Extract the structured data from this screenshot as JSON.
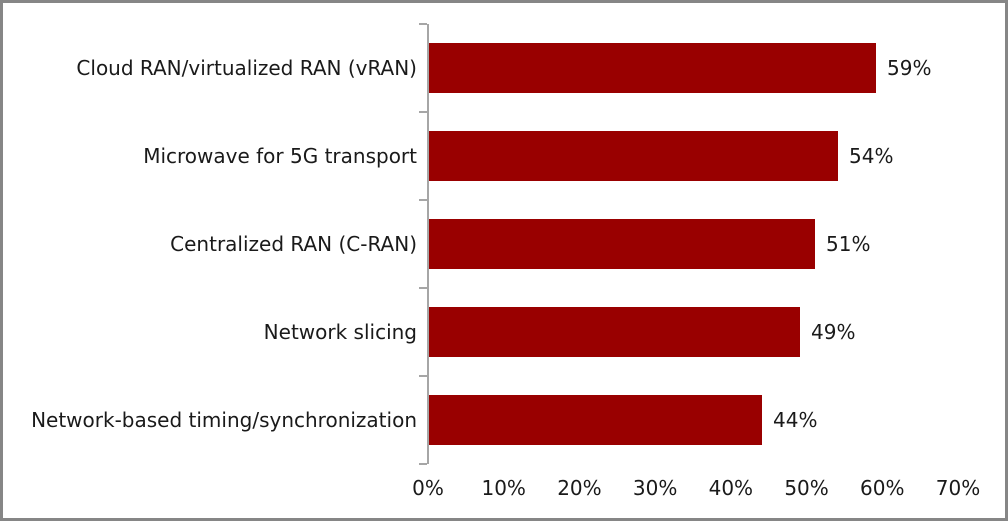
{
  "chart_data": {
    "type": "bar",
    "orientation": "horizontal",
    "title": "",
    "xlabel": "",
    "ylabel": "",
    "categories": [
      "Cloud RAN/virtualized RAN (vRAN)",
      "Microwave for 5G transport",
      "Centralized RAN (C-RAN)",
      "Network slicing",
      "Network-based timing/synchronization"
    ],
    "values": [
      59,
      54,
      51,
      49,
      44
    ],
    "value_labels": [
      "59%",
      "54%",
      "51%",
      "49%",
      "44%"
    ],
    "x_tick_labels": [
      "0%",
      "10%",
      "20%",
      "30%",
      "40%",
      "50%",
      "60%",
      "70%"
    ],
    "x_tick_values": [
      0,
      10,
      20,
      30,
      40,
      50,
      60,
      70
    ],
    "xlim": [
      0,
      70
    ],
    "grid": false,
    "legend": false,
    "data_labels_position": "outside-end",
    "colors": {
      "bar": "#990000",
      "axis": "#a6a6a6",
      "text": "#1a1a1a",
      "frame_border": "#868686",
      "background": "#ffffff"
    }
  }
}
